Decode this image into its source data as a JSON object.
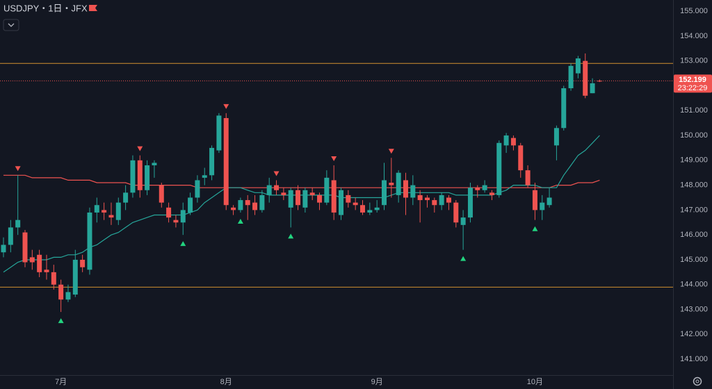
{
  "chart_data": {
    "type": "candlestick",
    "title": "USDJPY・1日・JFX",
    "categories": [
      null,
      null,
      null,
      null,
      null,
      null,
      null,
      null,
      "7月",
      null,
      null,
      null,
      null,
      null,
      null,
      null,
      null,
      null,
      null,
      null,
      null,
      null,
      null,
      null,
      null,
      null,
      null,
      null,
      null,
      null,
      null,
      "8月",
      null,
      null,
      null,
      null,
      null,
      null,
      null,
      null,
      null,
      null,
      null,
      null,
      null,
      null,
      null,
      null,
      null,
      null,
      null,
      null,
      "9月",
      null,
      null,
      null,
      null,
      null,
      null,
      null,
      null,
      null,
      null,
      null,
      null,
      null,
      null,
      null,
      null,
      null,
      null,
      null,
      null,
      null,
      "10月",
      null,
      null,
      null,
      null,
      null,
      null,
      null,
      null,
      null
    ],
    "open": [
      145.3,
      145.6,
      146.3,
      146.1,
      145.1,
      145.2,
      144.6,
      144.5,
      144.0,
      143.4,
      143.6,
      145.0,
      144.6,
      146.9,
      147.0,
      146.8,
      146.6,
      147.3,
      147.7,
      149.0,
      147.8,
      148.8,
      148.0,
      147.1,
      146.6,
      146.5,
      146.9,
      147.5,
      148.3,
      148.4,
      149.4,
      150.7,
      147.1,
      147.0,
      147.4,
      147.3,
      147.0,
      147.6,
      148.0,
      147.7,
      147.1,
      147.8,
      147.1,
      147.7,
      147.6,
      147.3,
      148.2,
      146.8,
      147.6,
      147.3,
      147.2,
      146.9,
      147.0,
      147.2,
      148.1,
      147.6,
      148.2,
      147.5,
      147.6,
      147.5,
      147.4,
      147.2,
      147.5,
      147.3,
      146.4,
      146.7,
      147.9,
      147.8,
      147.7,
      147.6,
      149.6,
      149.9,
      149.6,
      148.6,
      147.8,
      147.0,
      147.2,
      149.6,
      150.3,
      151.9,
      152.5,
      153.0,
      151.7,
      152.2
    ],
    "high": [
      145.9,
      146.6,
      148.4,
      146.2,
      145.4,
      145.4,
      145.2,
      144.8,
      144.2,
      144.0,
      145.4,
      145.2,
      147.1,
      147.5,
      147.3,
      147.3,
      147.5,
      148.0,
      149.2,
      149.2,
      149.0,
      149.0,
      148.1,
      147.3,
      146.8,
      147.3,
      147.7,
      148.4,
      148.7,
      149.6,
      150.9,
      150.9,
      147.2,
      147.5,
      147.6,
      147.6,
      147.8,
      148.3,
      148.2,
      147.9,
      147.9,
      148.0,
      147.9,
      147.9,
      147.7,
      148.6,
      148.8,
      147.9,
      147.8,
      147.5,
      147.4,
      147.3,
      147.4,
      148.9,
      149.1,
      148.6,
      148.5,
      148.4,
      147.8,
      147.6,
      147.5,
      147.7,
      147.6,
      147.4,
      147.0,
      148.1,
      148.0,
      148.2,
      147.8,
      149.8,
      150.1,
      150.0,
      149.7,
      148.8,
      148.1,
      147.6,
      147.9,
      150.4,
      152.0,
      152.9,
      153.2,
      153.3,
      152.3,
      152.25
    ],
    "low": [
      145.1,
      145.3,
      146.0,
      144.7,
      144.6,
      144.3,
      144.2,
      143.8,
      142.9,
      143.3,
      143.5,
      144.5,
      144.4,
      146.5,
      146.6,
      146.4,
      146.4,
      147.0,
      147.5,
      147.5,
      147.6,
      148.3,
      147.1,
      146.5,
      146.3,
      146.0,
      146.8,
      147.3,
      148.0,
      148.2,
      149.3,
      147.0,
      146.8,
      146.9,
      146.6,
      146.8,
      146.9,
      147.3,
      147.6,
      147.4,
      146.3,
      147.0,
      146.9,
      147.4,
      147.0,
      147.2,
      146.6,
      146.6,
      147.1,
      147.0,
      146.8,
      146.8,
      146.9,
      147.0,
      147.5,
      147.3,
      146.8,
      147.2,
      146.5,
      147.1,
      146.9,
      147.0,
      147.0,
      146.3,
      145.4,
      146.5,
      147.5,
      147.7,
      147.4,
      147.5,
      149.3,
      149.4,
      148.3,
      147.9,
      146.6,
      146.6,
      147.1,
      149.0,
      150.2,
      151.8,
      152.3,
      151.5,
      151.7,
      152.15
    ],
    "close": [
      145.6,
      146.3,
      146.6,
      144.9,
      144.9,
      144.5,
      144.5,
      144.0,
      143.4,
      143.7,
      145.0,
      144.7,
      146.9,
      147.2,
      146.9,
      146.7,
      147.3,
      147.7,
      149.0,
      147.8,
      148.8,
      148.9,
      147.3,
      146.7,
      146.5,
      147.0,
      147.5,
      148.2,
      148.4,
      149.5,
      150.8,
      147.2,
      147.0,
      147.4,
      147.2,
      147.0,
      147.6,
      148.0,
      147.8,
      147.6,
      147.8,
      147.2,
      147.8,
      147.6,
      147.3,
      148.3,
      146.9,
      147.8,
      147.3,
      147.2,
      146.9,
      147.0,
      147.1,
      148.2,
      148.0,
      148.5,
      147.5,
      148.0,
      147.4,
      147.4,
      147.2,
      147.6,
      147.3,
      146.5,
      146.7,
      147.9,
      147.8,
      148.0,
      147.6,
      149.7,
      150.0,
      149.6,
      148.6,
      148.0,
      147.0,
      147.3,
      147.5,
      150.3,
      151.9,
      152.8,
      153.1,
      151.6,
      152.1,
      152.199
    ],
    "up_color": "#26a69a",
    "down_color": "#ef5350",
    "series": [
      {
        "color": "#ef5350",
        "values": [
          148.4,
          148.4,
          148.4,
          148.4,
          148.3,
          148.3,
          148.3,
          148.3,
          148.3,
          148.2,
          148.2,
          148.2,
          148.2,
          148.1,
          148.1,
          148.1,
          148.1,
          148.1,
          148.0,
          148.0,
          148.0,
          148.0,
          148.0,
          148.0,
          148.0,
          148.0,
          148.0,
          147.9,
          147.9,
          147.9,
          147.9,
          147.9,
          147.9,
          147.9,
          147.9,
          147.9,
          147.9,
          147.9,
          147.9,
          147.9,
          147.9,
          147.9,
          147.9,
          147.9,
          147.9,
          147.9,
          147.9,
          147.9,
          147.9,
          147.9,
          147.9,
          147.9,
          147.9,
          147.9,
          147.9,
          147.9,
          147.9,
          147.9,
          147.9,
          147.9,
          147.9,
          147.9,
          147.9,
          147.9,
          147.9,
          147.9,
          147.9,
          147.9,
          147.9,
          147.9,
          147.9,
          147.9,
          147.9,
          147.9,
          147.9,
          147.9,
          147.9,
          148.0,
          148.0,
          148.0,
          148.1,
          148.1,
          148.1,
          148.2
        ]
      },
      {
        "color": "#26a69a",
        "values": [
          144.5,
          144.7,
          144.9,
          145.0,
          145.0,
          145.0,
          145.0,
          145.1,
          145.1,
          145.2,
          145.2,
          145.3,
          145.5,
          145.6,
          145.8,
          146.0,
          146.1,
          146.3,
          146.5,
          146.6,
          146.7,
          146.8,
          146.8,
          146.8,
          146.8,
          146.8,
          146.9,
          147.0,
          147.3,
          147.5,
          147.7,
          147.9,
          147.9,
          147.9,
          147.8,
          147.7,
          147.7,
          147.6,
          147.6,
          147.6,
          147.6,
          147.6,
          147.6,
          147.6,
          147.6,
          147.6,
          147.6,
          147.5,
          147.5,
          147.5,
          147.5,
          147.5,
          147.5,
          147.5,
          147.6,
          147.7,
          147.7,
          147.7,
          147.7,
          147.7,
          147.7,
          147.7,
          147.7,
          147.6,
          147.6,
          147.6,
          147.6,
          147.6,
          147.6,
          147.7,
          147.8,
          148.0,
          148.0,
          148.0,
          148.0,
          147.9,
          147.9,
          147.9,
          148.4,
          148.8,
          149.2,
          149.4,
          149.7,
          150.0
        ]
      }
    ],
    "sell_signals": [
      2,
      19,
      31,
      38,
      46,
      54
    ],
    "buy_signals": [
      8,
      25,
      33,
      40,
      64,
      74
    ],
    "hlines": [
      152.9,
      143.9
    ],
    "hline_color": "#d1902f",
    "last_price": 152.199,
    "countdown": "23:22:29",
    "ylim": [
      140.36,
      155.45
    ],
    "yticks": [
      {
        "value": 141,
        "label": "141.000"
      },
      {
        "value": 142,
        "label": "142.000"
      },
      {
        "value": 143,
        "label": "143.000"
      },
      {
        "value": 144,
        "label": "144.000"
      },
      {
        "value": 145,
        "label": "145.000"
      },
      {
        "value": 146,
        "label": "146.000"
      },
      {
        "value": 147,
        "label": "147.000"
      },
      {
        "value": 148,
        "label": "148.000"
      },
      {
        "value": 149,
        "label": "149.000"
      },
      {
        "value": 150,
        "label": "150.000"
      },
      {
        "value": 151,
        "label": "151.000"
      },
      {
        "value": 152,
        "label": "152.000"
      },
      {
        "value": 153,
        "label": "153.000"
      },
      {
        "value": 154,
        "label": "154.000"
      },
      {
        "value": 155,
        "label": "155.000"
      }
    ],
    "grid": false
  }
}
